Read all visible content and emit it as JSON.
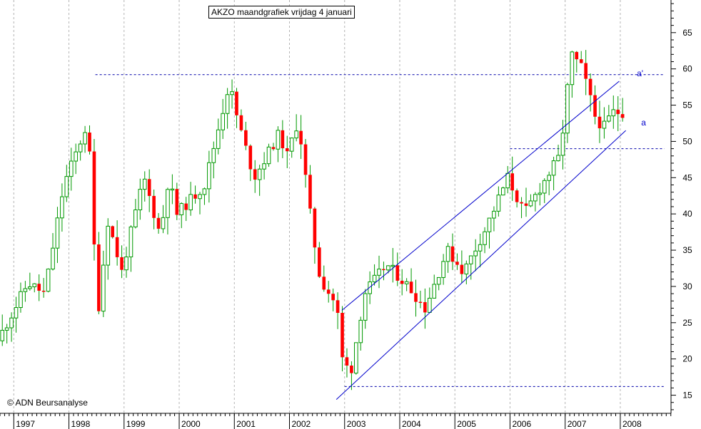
{
  "title": "AKZO maandgrafiek vrijdag 4 januari",
  "copyright": "© ADN Beursanalyse",
  "colors": {
    "up": "#009900",
    "down": "#ff0000",
    "wick": "#009900",
    "trendline": "#0000cc",
    "dotted": "#0000aa",
    "grid": "#b4b4b4",
    "axis": "#000000"
  },
  "chart_data": {
    "type": "candlestick",
    "interval": "monthly",
    "x_range": [
      1996.75,
      2008.92
    ],
    "y_range": [
      12.5,
      69.5
    ],
    "grid": true,
    "y_ticks": [
      15,
      20,
      25,
      30,
      35,
      40,
      45,
      50,
      55,
      60,
      65
    ],
    "x_ticks": [
      "1997",
      "1998",
      "1999",
      "2000",
      "2001",
      "2002",
      "2003",
      "2004",
      "2005",
      "2006",
      "2007",
      "2008"
    ],
    "anchors": [
      [
        1996.75,
        22.5
      ],
      [
        1997.3,
        30.5
      ],
      [
        1997.6,
        29
      ],
      [
        1997.95,
        44
      ],
      [
        1998.35,
        52
      ],
      [
        1998.45,
        46
      ],
      [
        1998.55,
        25
      ],
      [
        1998.75,
        39
      ],
      [
        1999.0,
        32
      ],
      [
        1999.4,
        45
      ],
      [
        1999.7,
        37
      ],
      [
        1999.85,
        45
      ],
      [
        2000.0,
        40
      ],
      [
        2000.5,
        44
      ],
      [
        2000.95,
        58
      ],
      [
        2001.1,
        53
      ],
      [
        2001.4,
        45
      ],
      [
        2001.85,
        51
      ],
      [
        2002.0,
        48
      ],
      [
        2002.2,
        53
      ],
      [
        2002.45,
        38
      ],
      [
        2002.6,
        31
      ],
      [
        2002.85,
        28
      ],
      [
        2002.95,
        25
      ],
      [
        2003.0,
        20
      ],
      [
        2003.15,
        18
      ],
      [
        2003.4,
        29
      ],
      [
        2003.8,
        33
      ],
      [
        2004.2,
        30
      ],
      [
        2004.5,
        27
      ],
      [
        2004.9,
        35
      ],
      [
        2005.2,
        32
      ],
      [
        2005.6,
        38
      ],
      [
        2006.0,
        45
      ],
      [
        2006.3,
        40
      ],
      [
        2006.7,
        45
      ],
      [
        2006.95,
        48
      ],
      [
        2007.15,
        62
      ],
      [
        2007.35,
        60
      ],
      [
        2007.6,
        53
      ],
      [
        2007.75,
        52
      ],
      [
        2007.9,
        54
      ]
    ],
    "annotations": [
      {
        "text": "a'",
        "at": [
          2008.3,
          59.4
        ]
      },
      {
        "text": "a",
        "at": [
          2008.38,
          52.6
        ]
      }
    ],
    "trendlines": [
      {
        "name": "upper channel",
        "from": [
          2002.95,
          26.7
        ],
        "to": [
          2007.98,
          58.3
        ]
      },
      {
        "name": "lower channel",
        "from": [
          2002.85,
          14.4
        ],
        "to": [
          2008.1,
          51.5
        ]
      }
    ],
    "horizontal_levels": [
      {
        "y": 59.2,
        "from": 1998.48,
        "to": 2008.8
      },
      {
        "y": 49.0,
        "from": 2006.0,
        "to": 2008.8
      },
      {
        "y": 16.2,
        "from": 2003.0,
        "to": 2008.8
      }
    ]
  }
}
